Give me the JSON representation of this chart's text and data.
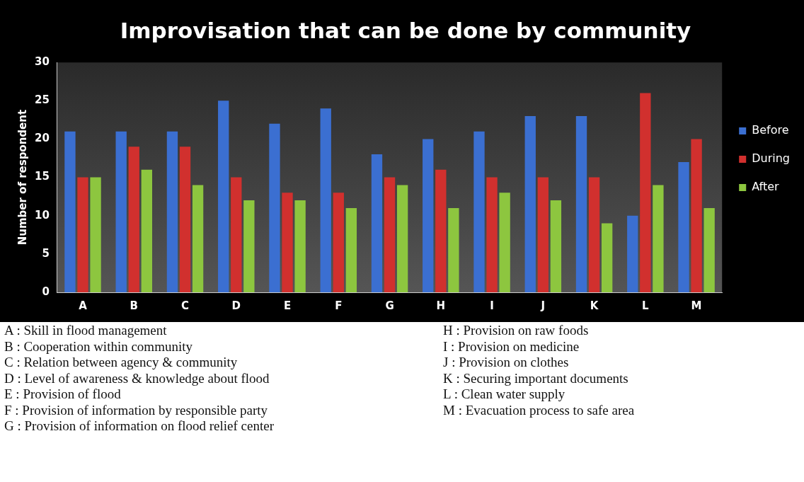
{
  "chart_data": {
    "type": "bar",
    "title": "Improvisation that can be done by community",
    "ylabel": "Number of respondent",
    "categories": [
      "A",
      "B",
      "C",
      "D",
      "E",
      "F",
      "G",
      "H",
      "I",
      "J",
      "K",
      "L",
      "M"
    ],
    "series": [
      {
        "name": "Before",
        "color": "#3b6fd1",
        "values": [
          21,
          21,
          21,
          25,
          22,
          24,
          18,
          20,
          21,
          23,
          23,
          10,
          17
        ]
      },
      {
        "name": "During",
        "color": "#d1302e",
        "values": [
          15,
          19,
          19,
          15,
          13,
          13,
          15,
          16,
          15,
          15,
          15,
          26,
          20
        ]
      },
      {
        "name": "After",
        "color": "#8dc63f",
        "values": [
          15,
          16,
          14,
          12,
          12,
          11,
          14,
          11,
          13,
          12,
          9,
          14,
          11
        ]
      }
    ],
    "ylim": [
      0,
      30
    ],
    "yticks": [
      0,
      5,
      10,
      15,
      20,
      25,
      30
    ],
    "grid": false,
    "legend": "right",
    "annotations": [
      "A : Skill in flood management",
      "B : Cooperation within community",
      "C : Relation between agency & community",
      "D : Level of awareness & knowledge about flood",
      "E : Provision of flood",
      "F : Provision of information by responsible party",
      "G : Provision of information on flood relief center",
      "H : Provision on raw foods",
      "I  : Provision on medicine",
      "J :  Provision on clothes",
      "K : Securing important documents",
      "L : Clean water supply",
      "M : Evacuation process to safe area"
    ]
  }
}
